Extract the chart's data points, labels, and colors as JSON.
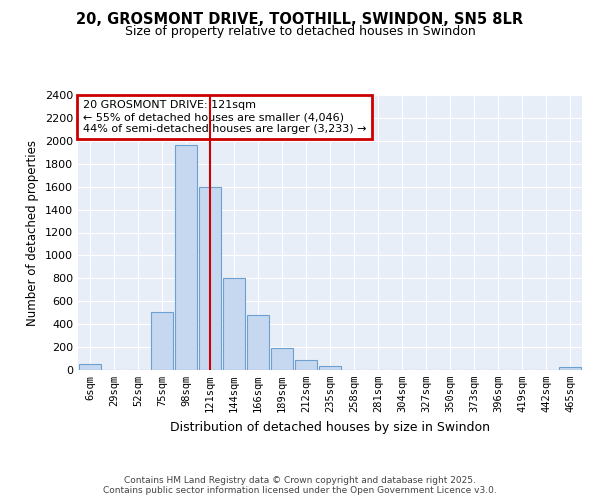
{
  "title1": "20, GROSMONT DRIVE, TOOTHILL, SWINDON, SN5 8LR",
  "title2": "Size of property relative to detached houses in Swindon",
  "xlabel": "Distribution of detached houses by size in Swindon",
  "ylabel": "Number of detached properties",
  "categories": [
    "6sqm",
    "29sqm",
    "52sqm",
    "75sqm",
    "98sqm",
    "121sqm",
    "144sqm",
    "166sqm",
    "189sqm",
    "212sqm",
    "235sqm",
    "258sqm",
    "281sqm",
    "304sqm",
    "327sqm",
    "350sqm",
    "373sqm",
    "396sqm",
    "419sqm",
    "442sqm",
    "465sqm"
  ],
  "values": [
    55,
    0,
    0,
    510,
    1960,
    1600,
    800,
    480,
    195,
    90,
    35,
    0,
    0,
    0,
    0,
    0,
    0,
    0,
    0,
    0,
    30
  ],
  "bar_color": "#c5d8f0",
  "bar_edge_color": "#6ca0d0",
  "bg_color": "#ffffff",
  "plot_bg_color": "#e8eef8",
  "grid_color": "#ffffff",
  "annotation_box_color": "#cc0000",
  "vline_color": "#cc0000",
  "annotation_text": "20 GROSMONT DRIVE: 121sqm\n← 55% of detached houses are smaller (4,046)\n44% of semi-detached houses are larger (3,233) →",
  "footer1": "Contains HM Land Registry data © Crown copyright and database right 2025.",
  "footer2": "Contains public sector information licensed under the Open Government Licence v3.0.",
  "ylim": [
    0,
    2400
  ],
  "yticks": [
    0,
    200,
    400,
    600,
    800,
    1000,
    1200,
    1400,
    1600,
    1800,
    2000,
    2200,
    2400
  ],
  "vline_index": 5
}
